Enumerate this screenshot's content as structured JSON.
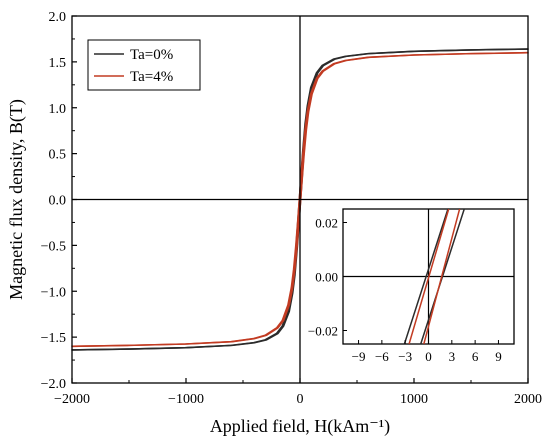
{
  "chart_data": [
    {
      "type": "line",
      "role": "main",
      "xlabel": "Applied field, H(kAm⁻¹)",
      "ylabel": "Magnetic flux density, B(T)",
      "xlim": [
        -2000,
        2000
      ],
      "ylim": [
        -2.0,
        2.0
      ],
      "xticks": [
        -2000,
        -1000,
        0,
        1000,
        2000
      ],
      "xtick_labels": [
        "−2000",
        "−1000",
        "0",
        "1000",
        "2000"
      ],
      "yticks": [
        -2.0,
        -1.5,
        -1.0,
        -0.5,
        0.0,
        0.5,
        1.0,
        1.5,
        2.0
      ],
      "ytick_labels": [
        "−2.0",
        "−1.5",
        "−1.0",
        "−0.5",
        "0.0",
        "0.5",
        "1.0",
        "1.5",
        "2.0"
      ],
      "legend_position": "top-left",
      "grid": false,
      "series": [
        {
          "name": "Ta=0%",
          "color": "#2b2b2b",
          "x": [
            -2000,
            -1500,
            -1000,
            -600,
            -400,
            -300,
            -200,
            -150,
            -100,
            -70,
            -50,
            -30,
            -15,
            0,
            15,
            30,
            50,
            70,
            100,
            150,
            200,
            300,
            400,
            600,
            1000,
            1500,
            2000
          ],
          "y": [
            -1.64,
            -1.63,
            -1.615,
            -1.59,
            -1.56,
            -1.53,
            -1.46,
            -1.38,
            -1.22,
            -1.02,
            -0.82,
            -0.53,
            -0.27,
            0.0,
            0.27,
            0.53,
            0.82,
            1.02,
            1.22,
            1.38,
            1.46,
            1.53,
            1.56,
            1.59,
            1.615,
            1.63,
            1.64
          ]
        },
        {
          "name": "Ta=4%",
          "color": "#c23b22",
          "x": [
            -2000,
            -1500,
            -1000,
            -600,
            -400,
            -300,
            -200,
            -150,
            -100,
            -70,
            -50,
            -30,
            -15,
            0,
            15,
            30,
            50,
            70,
            100,
            150,
            200,
            300,
            400,
            600,
            1000,
            1500,
            2000
          ],
          "y": [
            -1.6,
            -1.59,
            -1.575,
            -1.55,
            -1.515,
            -1.48,
            -1.4,
            -1.32,
            -1.15,
            -0.96,
            -0.76,
            -0.49,
            -0.25,
            0.0,
            0.25,
            0.49,
            0.76,
            0.96,
            1.15,
            1.32,
            1.4,
            1.48,
            1.515,
            1.55,
            1.575,
            1.59,
            1.6
          ]
        }
      ]
    },
    {
      "type": "line",
      "role": "inset",
      "xlim": [
        -11,
        11
      ],
      "ylim": [
        -0.025,
        0.025
      ],
      "xticks": [
        -9,
        -6,
        -3,
        0,
        3,
        6,
        9
      ],
      "xtick_labels": [
        "−9",
        "−6",
        "−3",
        "0",
        "3",
        "6",
        "9"
      ],
      "yticks": [
        -0.02,
        0.0,
        0.02
      ],
      "ytick_labels": [
        "−0.02",
        "0.00",
        "0.02"
      ],
      "series": [
        {
          "name": "Ta=0%",
          "color": "#2b2b2b",
          "branches": [
            {
              "x": [
                -3.1,
                2.5
              ],
              "y": [
                -0.025,
                0.025
              ]
            },
            {
              "x": [
                -1.0,
                4.6
              ],
              "y": [
                -0.025,
                0.025
              ]
            }
          ]
        },
        {
          "name": "Ta=4%",
          "color": "#c23b22",
          "branches": [
            {
              "x": [
                -2.5,
                2.6
              ],
              "y": [
                -0.025,
                0.025
              ]
            },
            {
              "x": [
                -0.6,
                4.0
              ],
              "y": [
                -0.025,
                0.025
              ]
            }
          ]
        }
      ]
    }
  ]
}
